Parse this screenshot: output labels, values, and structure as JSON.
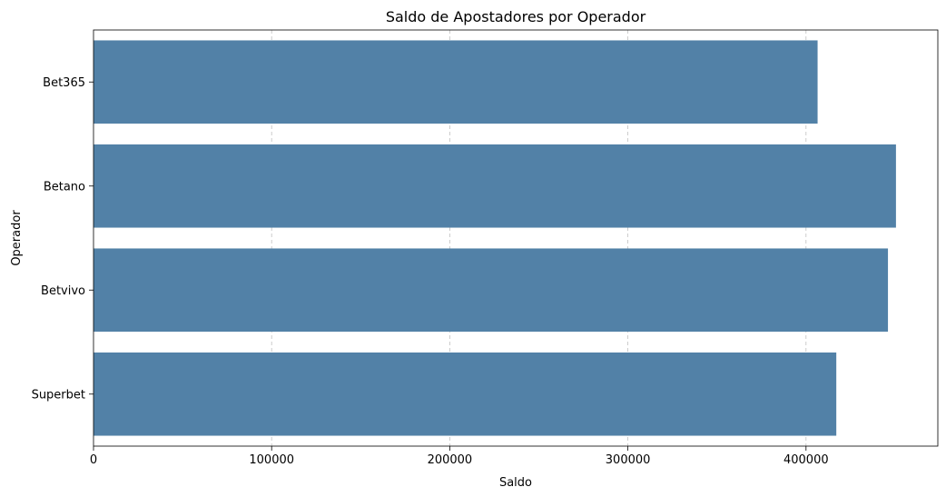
{
  "chart_data": {
    "type": "bar",
    "orientation": "horizontal",
    "title": "Saldo de Apostadores por Operador",
    "xlabel": "Saldo",
    "ylabel": "Operador",
    "categories": [
      "Bet365",
      "Betano",
      "Betvivo",
      "Superbet"
    ],
    "values": [
      406500,
      450500,
      446000,
      417000
    ],
    "xlim": [
      0,
      474000
    ],
    "xticks": [
      0,
      100000,
      200000,
      300000,
      400000
    ],
    "xtick_labels": [
      "0",
      "100000",
      "200000",
      "300000",
      "400000"
    ],
    "grid": "x-dashed",
    "colors": {
      "bar": "#5281a7",
      "grid": "#c0c0c0",
      "axis": "#000000"
    }
  }
}
